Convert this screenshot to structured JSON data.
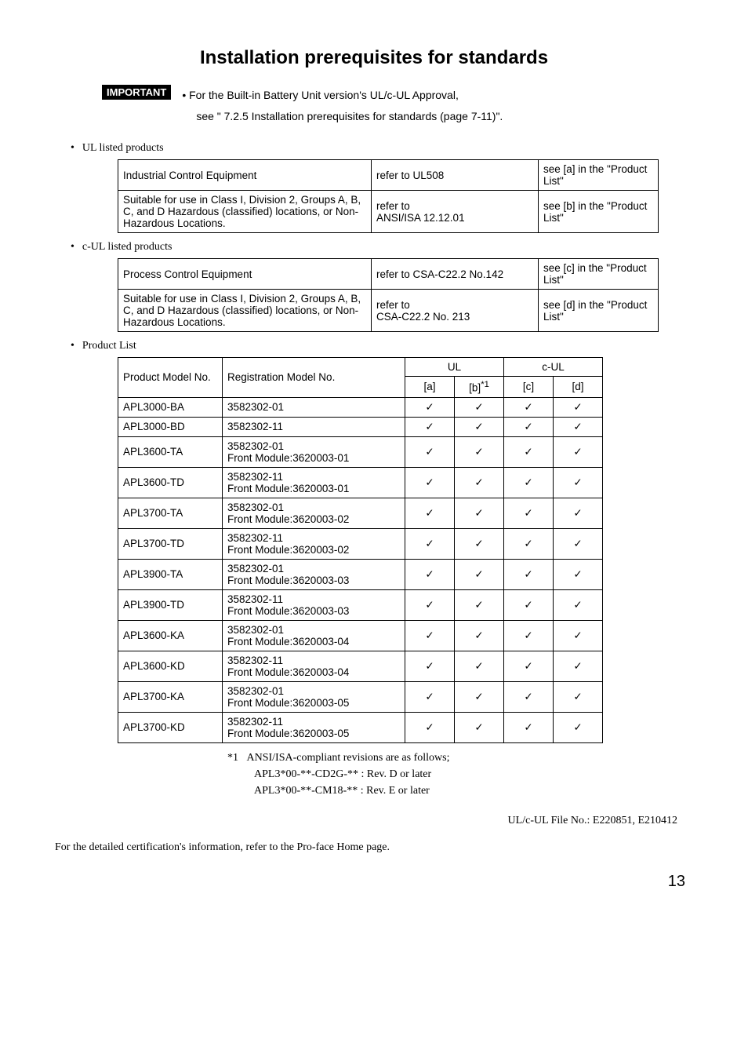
{
  "title": "Installation prerequisites for standards",
  "important": {
    "badge": "IMPORTANT",
    "line1_prefix": "•  ",
    "line1": "For the Built-in Battery Unit version's UL/c-UL Approval,",
    "line2": "see \" 7.2.5 Installation prerequisites for standards (page 7-11)\"."
  },
  "sections": {
    "ul_heading": "UL listed products",
    "cul_heading": "c-UL listed products",
    "plist_heading": "Product List"
  },
  "ul_table": {
    "rows": [
      [
        "Industrial Control Equipment",
        "refer to UL508",
        "see [a] in the \"Product List\""
      ],
      [
        "Suitable for use in Class I, Division 2, Groups A, B, C, and D Hazardous (classified) locations, or Non-Hazardous Locations.",
        "refer to\nANSI/ISA 12.12.01",
        "see [b] in the \"Product List\""
      ]
    ]
  },
  "cul_table": {
    "rows": [
      [
        "Process Control Equipment",
        "refer to CSA-C22.2 No.142",
        "see [c] in the \"Product List\""
      ],
      [
        "Suitable for use in Class I, Division 2, Groups A, B, C, and D Hazardous (classified) locations, or Non-Hazardous Locations.",
        "refer to\nCSA-C22.2 No. 213",
        "see [d] in the \"Product List\""
      ]
    ]
  },
  "product_table": {
    "headers": {
      "model": "Product Model No.",
      "reg": "Registration Model No.",
      "ul": "UL",
      "cul": "c-UL",
      "a": "[a]",
      "b": "[b]",
      "b_sup": "*1",
      "c": "[c]",
      "d": "[d]"
    },
    "check": "✓",
    "rows": [
      {
        "model": "APL3000-BA",
        "reg": "3582302-01"
      },
      {
        "model": "APL3000-BD",
        "reg": "3582302-11"
      },
      {
        "model": "APL3600-TA",
        "reg": "3582302-01\nFront Module:3620003-01"
      },
      {
        "model": "APL3600-TD",
        "reg": "3582302-11\nFront Module:3620003-01"
      },
      {
        "model": "APL3700-TA",
        "reg": "3582302-01\nFront Module:3620003-02"
      },
      {
        "model": "APL3700-TD",
        "reg": "3582302-11\nFront Module:3620003-02"
      },
      {
        "model": "APL3900-TA",
        "reg": "3582302-01\nFront Module:3620003-03"
      },
      {
        "model": "APL3900-TD",
        "reg": "3582302-11\nFront Module:3620003-03"
      },
      {
        "model": "APL3600-KA",
        "reg": "3582302-01\nFront Module:3620003-04"
      },
      {
        "model": "APL3600-KD",
        "reg": "3582302-11\nFront Module:3620003-04"
      },
      {
        "model": "APL3700-KA",
        "reg": "3582302-01\nFront Module:3620003-05"
      },
      {
        "model": "APL3700-KD",
        "reg": "3582302-11\nFront Module:3620003-05"
      }
    ]
  },
  "footnote": {
    "marker": "*1",
    "l1": "ANSI/ISA-compliant revisions are as follows;",
    "l2": "APL3*00-**-CD2G-** : Rev. D or later",
    "l3": "APL3*00-**-CM18-** : Rev. E or later"
  },
  "file_no": "UL/c-UL File No.: E220851, E210412",
  "final": "For the detailed certification's information, refer to the Pro-face Home page.",
  "page_no": "13"
}
